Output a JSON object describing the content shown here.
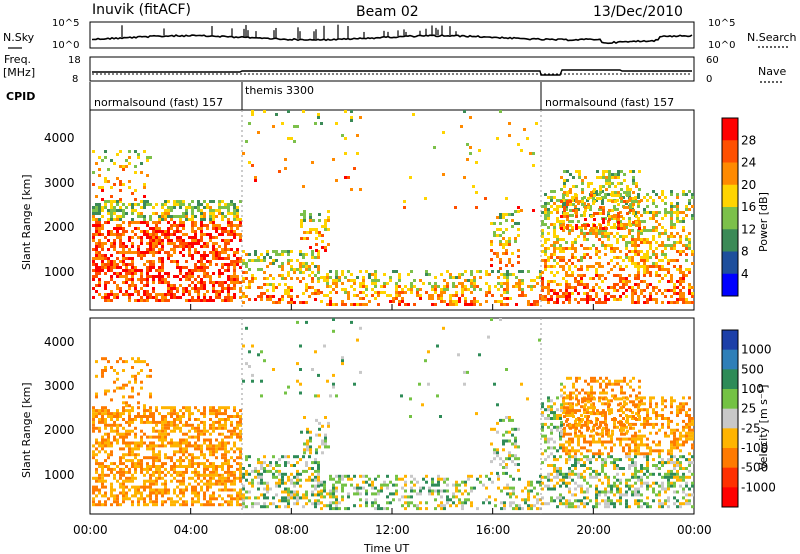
{
  "header": {
    "station": "Inuvik (fitACF)",
    "beam": "Beam 02",
    "date": "13/Dec/2010"
  },
  "side_labels": {
    "nsky": "N.Sky",
    "freq": "Freq.",
    "mhz": "[MHz]",
    "cpid": "CPID",
    "nsearch": "N.Search",
    "nave": "Nave"
  },
  "cpid_segments": [
    {
      "label": "normalsound (fast) 157"
    },
    {
      "label": "themis 3300"
    },
    {
      "label": "normalsound (fast) 157"
    }
  ],
  "colors": {
    "power_scale": [
      "#0000ff",
      "#1e4f9c",
      "#3b8a57",
      "#7cc04a",
      "#ffd400",
      "#ff8a00",
      "#ff5000",
      "#ff0000"
    ],
    "velocity_scale": [
      "#1c3fa8",
      "#2f7fb8",
      "#2e8b57",
      "#74c244",
      "#c8c8c8",
      "#ffb400",
      "#ff7a00",
      "#ff3000",
      "#ff0000"
    ]
  },
  "chart_data": [
    {
      "type": "line",
      "title": "N.Sky / N.Search",
      "y_tick_labels": [
        "10^5",
        "10^0"
      ],
      "right_tick_labels": [
        "10^5",
        "10^0"
      ],
      "note": "noise level time series"
    },
    {
      "type": "line",
      "title": "Freq. / Nave",
      "y_tick_labels": [
        "18",
        "8"
      ],
      "right_tick_labels": [
        "60",
        "0"
      ]
    },
    {
      "type": "heatmap",
      "ylabel": "Slant Range [km]",
      "xlabel": "Time UT",
      "x_tick_labels": [
        "00:00",
        "04:00",
        "08:00",
        "12:00",
        "16:00",
        "20:00",
        "00:00"
      ],
      "y_tick_labels": [
        "1000",
        "2000",
        "3000",
        "4000"
      ],
      "colorbar_label": "Power [dB]",
      "colorbar_ticks": [
        "28",
        "24",
        "20",
        "16",
        "12",
        "8",
        "4"
      ]
    },
    {
      "type": "heatmap",
      "ylabel": "Slant Range [km]",
      "xlabel": "Time UT",
      "x_tick_labels": [
        "00:00",
        "04:00",
        "08:00",
        "12:00",
        "16:00",
        "20:00",
        "00:00"
      ],
      "y_tick_labels": [
        "1000",
        "2000",
        "3000",
        "4000"
      ],
      "colorbar_label": "Velocity [m s⁻¹]",
      "colorbar_ticks": [
        "1000",
        "500",
        "100",
        "25",
        "-25",
        "-100",
        "-500",
        "-1000"
      ]
    }
  ]
}
